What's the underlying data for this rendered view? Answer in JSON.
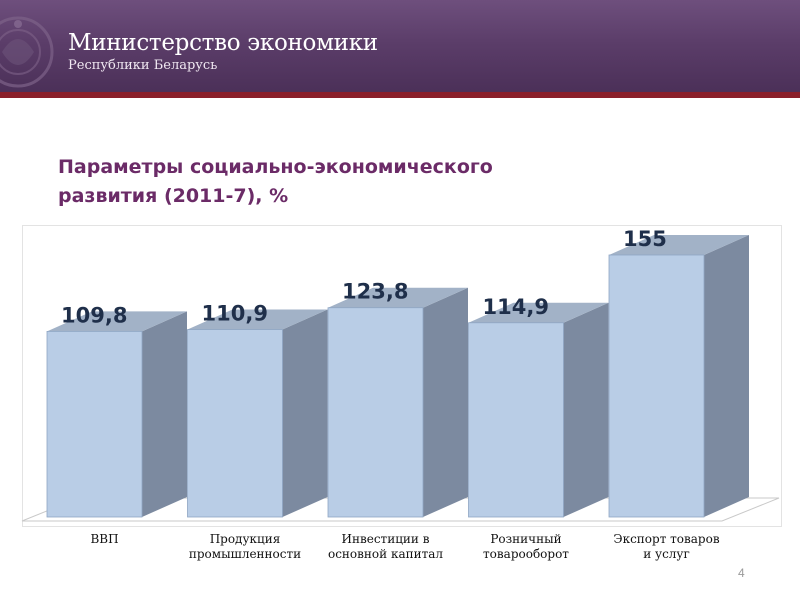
{
  "header": {
    "org_title": "Министерство экономики",
    "org_subtitle": "Республики Беларусь",
    "logo_icon": "state-emblem-icon"
  },
  "slide": {
    "title_line1": "Параметры социально-экономического",
    "title_line2": "развития (2011-7), %",
    "page_number": "4"
  },
  "colors": {
    "banner": "#5b3d69",
    "accent": "#8a1f2a",
    "title": "#6b2b67",
    "bar_front": "#b9cde6",
    "bar_side": "#7c8aa0",
    "bar_top": "#a2b2c7"
  },
  "chart_data": {
    "type": "bar",
    "categories": [
      [
        "ВВП"
      ],
      [
        "Продукция",
        "промышленности"
      ],
      [
        "Инвестиции в",
        "основной капитал"
      ],
      [
        "Розничный",
        "товарооборот"
      ],
      [
        "Экспорт товаров",
        "и услуг"
      ]
    ],
    "values": [
      109.8,
      110.9,
      123.8,
      114.9,
      155
    ],
    "value_labels": [
      "109,8",
      "110,9",
      "123,8",
      "114,9",
      "155"
    ],
    "ylim": [
      0,
      160
    ],
    "grid": false,
    "style": "3d-column"
  }
}
